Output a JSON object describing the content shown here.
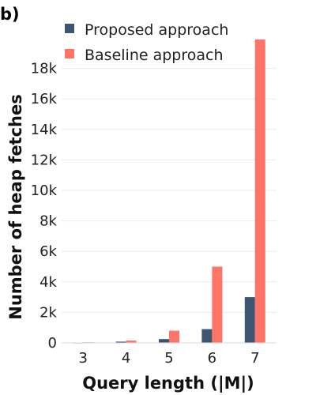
{
  "panel_label": "b)",
  "chart_data": {
    "type": "bar",
    "categories": [
      "3",
      "4",
      "5",
      "6",
      "7"
    ],
    "series": [
      {
        "name": "Proposed approach",
        "color": "#3d5573",
        "values": [
          20,
          80,
          250,
          900,
          3000
        ]
      },
      {
        "name": "Baseline approach",
        "color": "#ff7466",
        "values": [
          40,
          150,
          800,
          5000,
          19900
        ]
      }
    ],
    "xlabel": "Query length (|M|)",
    "ylabel": "Number of heap fetches",
    "ylim": [
      0,
      20000
    ],
    "yticks": [
      0,
      2000,
      4000,
      6000,
      8000,
      10000,
      12000,
      14000,
      16000,
      18000
    ],
    "ytick_labels": [
      "0",
      "2k",
      "4k",
      "6k",
      "8k",
      "10k",
      "12k",
      "14k",
      "16k",
      "18k"
    ],
    "grid": true,
    "legend_position": "top-left"
  }
}
